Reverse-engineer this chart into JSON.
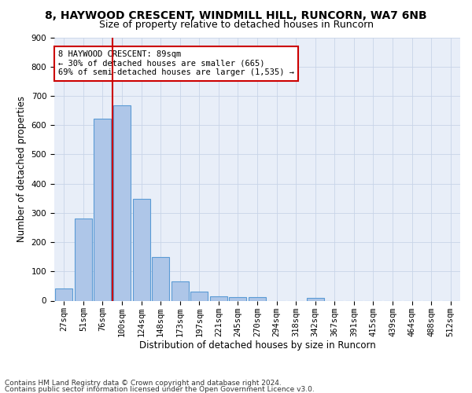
{
  "title_line1": "8, HAYWOOD CRESCENT, WINDMILL HILL, RUNCORN, WA7 6NB",
  "title_line2": "Size of property relative to detached houses in Runcorn",
  "xlabel": "Distribution of detached houses by size in Runcorn",
  "ylabel": "Number of detached properties",
  "bar_labels": [
    "27sqm",
    "51sqm",
    "76sqm",
    "100sqm",
    "124sqm",
    "148sqm",
    "173sqm",
    "197sqm",
    "221sqm",
    "245sqm",
    "270sqm",
    "294sqm",
    "318sqm",
    "342sqm",
    "367sqm",
    "391sqm",
    "415sqm",
    "439sqm",
    "464sqm",
    "488sqm",
    "512sqm"
  ],
  "bar_values": [
    42,
    280,
    622,
    668,
    348,
    148,
    65,
    30,
    15,
    12,
    12,
    0,
    0,
    10,
    0,
    0,
    0,
    0,
    0,
    0,
    0
  ],
  "bar_color": "#aec6e8",
  "bar_edge_color": "#5b9bd5",
  "vline_color": "#cc0000",
  "annotation_text": "8 HAYWOOD CRESCENT: 89sqm\n← 30% of detached houses are smaller (665)\n69% of semi-detached houses are larger (1,535) →",
  "annotation_box_color": "#cc0000",
  "annotation_text_color": "#000000",
  "ylim": [
    0,
    900
  ],
  "yticks": [
    0,
    100,
    200,
    300,
    400,
    500,
    600,
    700,
    800,
    900
  ],
  "grid_color": "#c8d4e8",
  "bg_color": "#e8eef8",
  "footer_line1": "Contains HM Land Registry data © Crown copyright and database right 2024.",
  "footer_line2": "Contains public sector information licensed under the Open Government Licence v3.0.",
  "title_fontsize": 10,
  "subtitle_fontsize": 9,
  "axis_label_fontsize": 8.5,
  "tick_fontsize": 7.5,
  "annotation_fontsize": 7.5,
  "footer_fontsize": 6.5
}
